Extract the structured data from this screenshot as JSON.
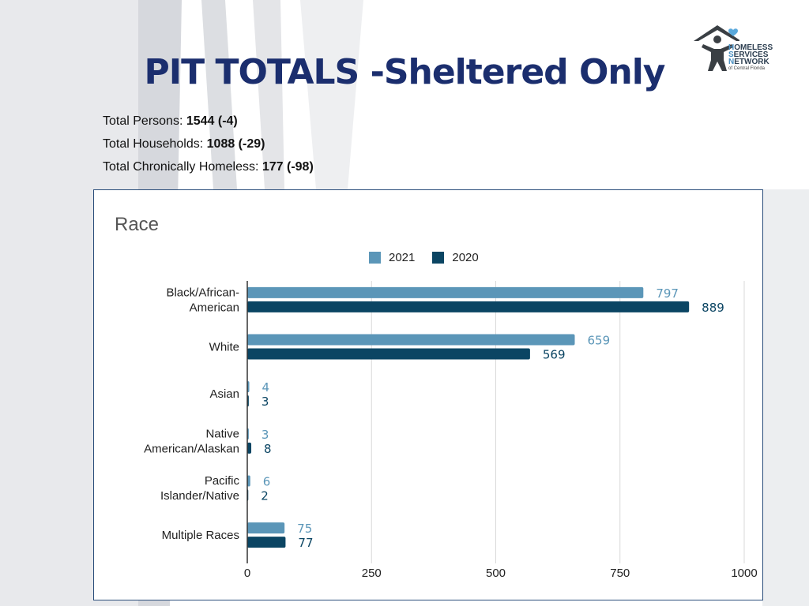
{
  "slide": {
    "title": "PIT TOTALS -Sheltered Only",
    "logo": {
      "line1_cap": "H",
      "line1_rest": "OMELESS",
      "line2_cap": "S",
      "line2_rest": "ERVICES",
      "line3_cap": "N",
      "line3_rest": "ETWORK",
      "subtitle": "of Central Florida"
    },
    "stats": [
      {
        "label": "Total Persons: ",
        "value": "1544 (-4)"
      },
      {
        "label": "Total Households: ",
        "value": "1088 (-29)"
      },
      {
        "label": "Total Chronically Homeless: ",
        "value": "177 (-98)"
      }
    ]
  },
  "colors": {
    "series_2021": "#5b96b8",
    "series_2020": "#0b4563",
    "title": "#1b2e6e",
    "gridline": "#d9d9d9",
    "axis": "#333333"
  },
  "chart_data": {
    "type": "bar",
    "orientation": "horizontal",
    "title": "Race",
    "categories": [
      [
        "Black/African-",
        "American"
      ],
      [
        "White"
      ],
      [
        "Asian"
      ],
      [
        "Native",
        "American/Alaskan"
      ],
      [
        "Pacific",
        "Islander/Native"
      ],
      [
        "Multiple Races"
      ]
    ],
    "series": [
      {
        "name": "2021",
        "values": [
          797,
          659,
          4,
          3,
          6,
          75
        ]
      },
      {
        "name": "2020",
        "values": [
          889,
          569,
          3,
          8,
          2,
          77
        ]
      }
    ],
    "xlim": [
      0,
      1000
    ],
    "xticks": [
      0,
      250,
      500,
      750,
      1000
    ],
    "legend": "top-center",
    "grid": true
  }
}
